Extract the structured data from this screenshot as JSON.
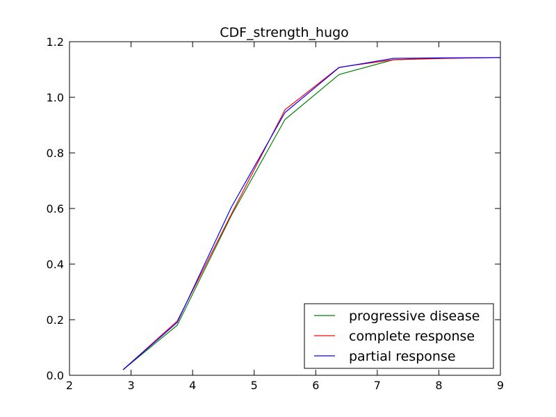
{
  "chart_data": {
    "type": "line",
    "title": "CDF_strength_hugo",
    "xlabel": "",
    "ylabel": "",
    "xlim": [
      2,
      9
    ],
    "ylim": [
      0.0,
      1.2
    ],
    "xticks": [
      2,
      3,
      4,
      5,
      6,
      7,
      8,
      9
    ],
    "yticks": [
      0.0,
      0.2,
      0.4,
      0.6,
      0.8,
      1.0,
      1.2
    ],
    "xtick_labels": [
      "2",
      "3",
      "4",
      "5",
      "6",
      "7",
      "8",
      "9"
    ],
    "ytick_labels": [
      "0.0",
      "0.2",
      "0.4",
      "0.6",
      "0.8",
      "1.0",
      "1.2"
    ],
    "grid": false,
    "legend_position": "bottom-right",
    "series": [
      {
        "name": "progressive disease",
        "color": "#008000",
        "x": [
          2.87,
          3.75,
          4.63,
          5.5,
          6.38,
          7.26,
          8.13,
          9.0
        ],
        "y": [
          0.02,
          0.18,
          0.575,
          0.92,
          1.082,
          1.135,
          1.141,
          1.143
        ]
      },
      {
        "name": "complete response",
        "color": "#ff0000",
        "x": [
          2.87,
          3.75,
          4.63,
          5.5,
          6.38,
          7.26,
          8.13,
          9.0
        ],
        "y": [
          0.02,
          0.195,
          0.58,
          0.955,
          1.108,
          1.135,
          1.14,
          1.143
        ]
      },
      {
        "name": "partial response",
        "color": "#0000ff",
        "x": [
          2.87,
          3.75,
          4.63,
          5.5,
          6.38,
          7.26,
          8.13,
          9.0
        ],
        "y": [
          0.02,
          0.19,
          0.605,
          0.945,
          1.107,
          1.14,
          1.142,
          1.143
        ]
      }
    ]
  }
}
